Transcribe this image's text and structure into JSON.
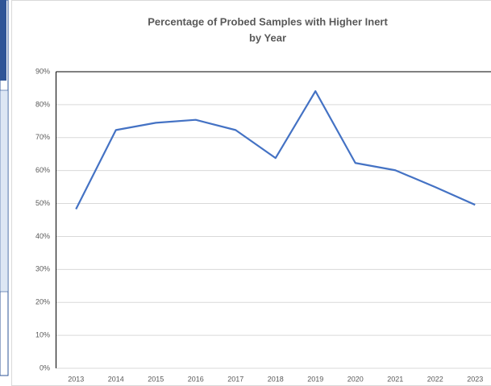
{
  "chart_data": {
    "type": "line",
    "title": [
      "Percentage of Probed Samples with Higher Inert",
      "by Year"
    ],
    "categories": [
      "2013",
      "2014",
      "2015",
      "2016",
      "2017",
      "2018",
      "2019",
      "2020",
      "2021",
      "2022",
      "2023"
    ],
    "series": [
      {
        "name": "Percentage",
        "color": "#4472c4",
        "values": [
          48.3,
          72.3,
          74.5,
          75.4,
          72.3,
          63.8,
          84.1,
          62.3,
          60.1,
          55.0,
          49.6
        ]
      }
    ],
    "ylim": [
      0,
      90
    ],
    "yticks": [
      {
        "value": 0,
        "label": "0%"
      },
      {
        "value": 10,
        "label": "10%"
      },
      {
        "value": 20,
        "label": "20%"
      },
      {
        "value": 30,
        "label": "30%"
      },
      {
        "value": 40,
        "label": "40%"
      },
      {
        "value": 50,
        "label": "50%"
      },
      {
        "value": 60,
        "label": "60%"
      },
      {
        "value": 70,
        "label": "70%"
      },
      {
        "value": 80,
        "label": "80%"
      },
      {
        "value": 90,
        "label": "90%"
      }
    ],
    "grid": true
  }
}
